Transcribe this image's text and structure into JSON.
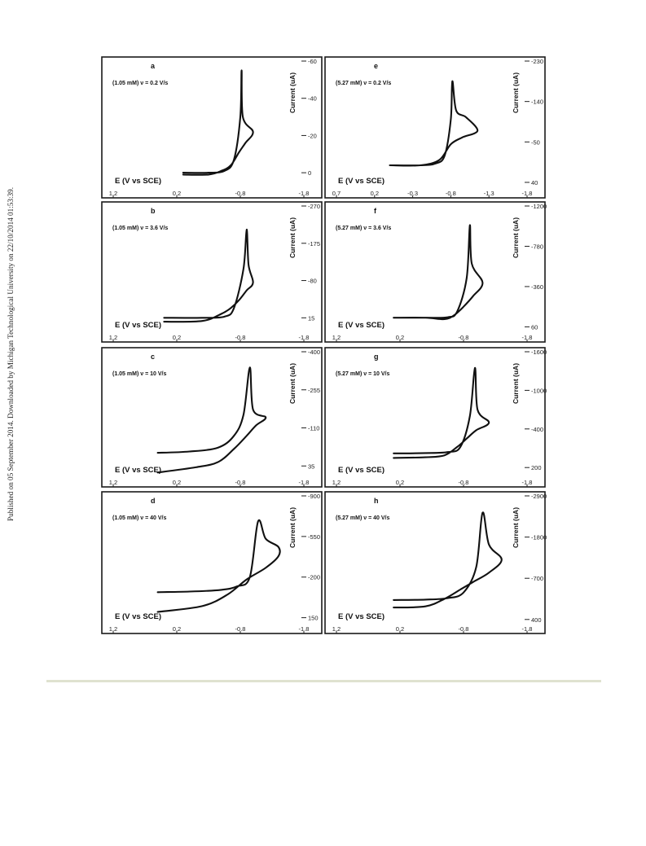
{
  "side_note": "Published on 05 September 2014. Downloaded by Michigan Technological University on 22/10/2014 01:53:39.",
  "chart_data": [
    {
      "type": "line",
      "panel": "a",
      "condition": "(1.05 mM) ν = 0.2 V/s",
      "xlabel": "E (V vs SCE)",
      "ylabel": "Current (uA)",
      "xlim": [
        1.2,
        -1.8
      ],
      "x_ticks": [
        "1.2",
        "0.2",
        "-0.8",
        "-1.8"
      ],
      "ylim": [
        10,
        -60
      ],
      "y_ticks": [
        "-60",
        "-40",
        "-20",
        "0"
      ],
      "series": [
        {
          "x": [
            0.1,
            -0.3,
            -0.55,
            -0.7,
            -0.8,
            -0.82,
            -0.84,
            -1.0,
            -0.88,
            -0.78,
            -0.65,
            -0.5,
            -0.3,
            0.1
          ],
          "y": [
            0,
            0,
            -1,
            -7,
            -30,
            -55,
            -30,
            -22,
            -16,
            -11,
            -4,
            -1,
            1,
            1
          ]
        }
      ]
    },
    {
      "type": "line",
      "panel": "b",
      "condition": "(1.05 mM) ν = 3.6 V/s",
      "xlabel": "E (V vs SCE)",
      "ylabel": "Current (uA)",
      "xlim": [
        1.2,
        -1.8
      ],
      "x_ticks": [
        "1.2",
        "0.2",
        "-0.8",
        "-1.8"
      ],
      "ylim": [
        60,
        -270
      ],
      "y_ticks": [
        "-270",
        "-175",
        "-80",
        "15"
      ],
      "series": [
        {
          "x": [
            0.4,
            -0.2,
            -0.55,
            -0.7,
            -0.85,
            -0.9,
            -0.93,
            -1.0,
            -0.9,
            -0.78,
            -0.65,
            -0.5,
            -0.2,
            0.4
          ],
          "y": [
            15,
            15,
            12,
            -10,
            -110,
            -210,
            -120,
            -75,
            -55,
            -30,
            -10,
            5,
            23,
            25
          ]
        }
      ]
    },
    {
      "type": "line",
      "panel": "c",
      "condition": "(1.05 mM) ν = 10 V/s",
      "xlabel": "E (V vs SCE)",
      "ylabel": "Current (uA)",
      "xlim": [
        1.2,
        -1.8
      ],
      "x_ticks": [
        "1.2",
        "0.2",
        "-0.8",
        "-1.8"
      ],
      "ylim": [
        90,
        -400
      ],
      "y_ticks": [
        "-400",
        "-255",
        "-110",
        "35"
      ],
      "series": [
        {
          "x": [
            0.5,
            0,
            -0.45,
            -0.7,
            -0.85,
            -0.95,
            -1.0,
            -1.2,
            -1.05,
            -0.9,
            -0.7,
            -0.45,
            -0.1,
            0.5
          ],
          "y": [
            -15,
            -20,
            -35,
            -80,
            -160,
            -340,
            -180,
            -150,
            -120,
            -80,
            -30,
            20,
            40,
            60
          ]
        }
      ]
    },
    {
      "type": "line",
      "panel": "d",
      "condition": "(1.05 mM) ν = 40 V/s",
      "xlabel": "E (V vs SCE)",
      "ylabel": "Current (uA)",
      "xlim": [
        1.2,
        -1.8
      ],
      "x_ticks": [
        "1.2",
        "0.2",
        "-0.8",
        "-1.8"
      ],
      "ylim": [
        230,
        -900
      ],
      "y_ticks": [
        "-900",
        "-550",
        "-200",
        "150"
      ],
      "series": [
        {
          "x": [
            0.5,
            0,
            -0.5,
            -0.75,
            -0.95,
            -1.08,
            -1.2,
            -1.4,
            -1.4,
            -1.2,
            -0.9,
            -0.6,
            -0.2,
            0.5
          ],
          "y": [
            -70,
            -75,
            -90,
            -120,
            -200,
            -680,
            -530,
            -460,
            -380,
            -280,
            -180,
            -50,
            50,
            100
          ]
        }
      ]
    },
    {
      "type": "line",
      "panel": "e",
      "condition": "(5.27 mM) ν = 0.2 V/s",
      "xlabel": "E (V vs SCE)",
      "ylabel": "Current (uA)",
      "xlim": [
        0.7,
        -1.8
      ],
      "x_ticks": [
        "0.7",
        "0.2",
        "-0.3",
        "-0.8",
        "-1.3",
        "-1.8"
      ],
      "ylim": [
        60,
        -230
      ],
      "y_ticks": [
        "-230",
        "-140",
        "-50",
        "40"
      ],
      "series": [
        {
          "x": [
            0.0,
            -0.4,
            -0.6,
            -0.72,
            -0.8,
            -0.82,
            -0.87,
            -1.0,
            -1.15,
            -0.95,
            -0.8,
            -0.65,
            -0.4,
            0.0
          ],
          "y": [
            2,
            2,
            -2,
            -20,
            -100,
            -185,
            -120,
            -105,
            -75,
            -60,
            -45,
            -10,
            2,
            2
          ]
        }
      ]
    },
    {
      "type": "line",
      "panel": "f",
      "condition": "(5.27 mM) ν = 3.6 V/s",
      "xlabel": "E (V vs SCE)",
      "ylabel": "Current (uA)",
      "xlim": [
        1.2,
        -1.8
      ],
      "x_ticks": [
        "1.2",
        "0.2",
        "-0.8",
        "-1.8"
      ],
      "ylim": [
        150,
        -1200
      ],
      "y_ticks": [
        "-1200",
        "-780",
        "-360",
        "60"
      ],
      "series": [
        {
          "x": [
            0.3,
            -0.2,
            -0.55,
            -0.7,
            -0.85,
            -0.9,
            -0.93,
            -1.1,
            -0.95,
            -0.8,
            -0.65,
            -0.5,
            -0.2,
            0.3
          ],
          "y": [
            -35,
            -35,
            -40,
            -100,
            -450,
            -1000,
            -600,
            -400,
            -260,
            -150,
            -60,
            -20,
            -35,
            -35
          ]
        }
      ]
    },
    {
      "type": "line",
      "panel": "g",
      "condition": "(5.27 mM) ν = 10 V/s",
      "xlabel": "E (V vs SCE)",
      "ylabel": "Current (uA)",
      "xlim": [
        1.2,
        -1.8
      ],
      "x_ticks": [
        "1.2",
        "0.2",
        "-0.8",
        "-1.8"
      ],
      "ylim": [
        400,
        -1600
      ],
      "y_ticks": [
        "-1600",
        "-1000",
        "-400",
        "200"
      ],
      "series": [
        {
          "x": [
            0.3,
            -0.2,
            -0.55,
            -0.75,
            -0.9,
            -0.98,
            -1.02,
            -1.2,
            -1.0,
            -0.85,
            -0.7,
            -0.5,
            -0.2,
            0.3
          ],
          "y": [
            -20,
            -25,
            -40,
            -120,
            -600,
            -1350,
            -700,
            -500,
            -380,
            -250,
            -120,
            10,
            40,
            50
          ]
        }
      ]
    },
    {
      "type": "line",
      "panel": "h",
      "condition": "(5.27 mM) ν = 40 V/s",
      "xlabel": "E (V vs SCE)",
      "ylabel": "Current (uA)",
      "xlim": [
        1.2,
        -1.8
      ],
      "x_ticks": [
        "1.2",
        "0.2",
        "-0.8",
        "-1.8"
      ],
      "ylim": [
        600,
        -2900
      ],
      "y_ticks": [
        "-2900",
        "-1800",
        "-700",
        "400"
      ],
      "series": [
        {
          "x": [
            0.3,
            -0.2,
            -0.55,
            -0.8,
            -1.0,
            -1.1,
            -1.2,
            -1.4,
            -1.2,
            -0.95,
            -0.75,
            -0.5,
            -0.2,
            0.3
          ],
          "y": [
            -120,
            -130,
            -170,
            -320,
            -1000,
            -2450,
            -1600,
            -1200,
            -850,
            -600,
            -400,
            -150,
            50,
            80
          ]
        }
      ]
    }
  ]
}
